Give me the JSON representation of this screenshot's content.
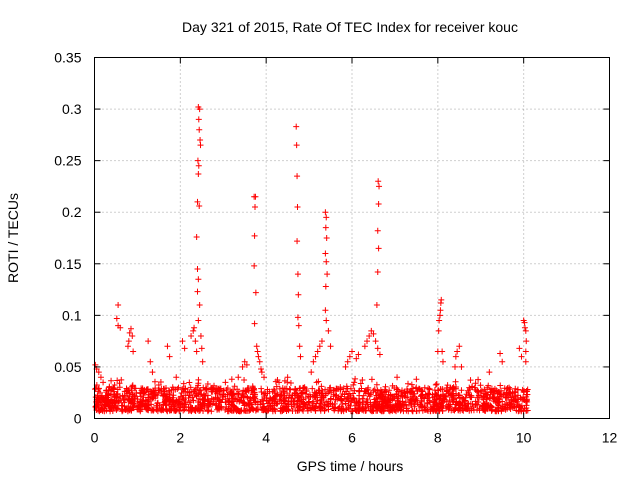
{
  "chart_data": {
    "type": "scatter",
    "title": "Day 321 of 2015, Rate Of TEC Index for receiver kouc",
    "xlabel": "GPS time / hours",
    "ylabel": "ROTI / TECUs",
    "xlim": [
      0,
      12
    ],
    "ylim": [
      0,
      0.35
    ],
    "x_ticks": [
      0,
      2,
      4,
      6,
      8,
      10,
      12
    ],
    "y_ticks": [
      0,
      0.05,
      0.1,
      0.15,
      0.2,
      0.25,
      0.3,
      0.35
    ],
    "x_tick_labels": [
      "0",
      "2",
      "4",
      "6",
      "8",
      "10",
      "12"
    ],
    "y_tick_labels": [
      "0",
      "0.05",
      "0.1",
      "0.15",
      "0.2",
      "0.25",
      "0.3",
      "0.35"
    ],
    "grid": true,
    "marker": "+",
    "color": "#ff0000",
    "background_band": {
      "x_range": [
        0.0,
        10.1
      ],
      "y_typical": [
        0.007,
        0.03
      ]
    },
    "series": [
      {
        "name": "ROTI",
        "points": [
          [
            0.02,
            0.052
          ],
          [
            0.05,
            0.048
          ],
          [
            0.1,
            0.045
          ],
          [
            0.15,
            0.04
          ],
          [
            0.2,
            0.035
          ],
          [
            0.55,
            0.11
          ],
          [
            0.52,
            0.097
          ],
          [
            0.55,
            0.09
          ],
          [
            0.6,
            0.088
          ],
          [
            0.78,
            0.07
          ],
          [
            0.8,
            0.075
          ],
          [
            0.82,
            0.083
          ],
          [
            0.85,
            0.087
          ],
          [
            0.88,
            0.08
          ],
          [
            0.9,
            0.065
          ],
          [
            1.25,
            0.075
          ],
          [
            1.3,
            0.055
          ],
          [
            1.35,
            0.045
          ],
          [
            1.7,
            0.07
          ],
          [
            1.75,
            0.06
          ],
          [
            2.05,
            0.075
          ],
          [
            2.1,
            0.068
          ],
          [
            2.25,
            0.08
          ],
          [
            2.3,
            0.085
          ],
          [
            2.32,
            0.088
          ],
          [
            2.35,
            0.075
          ],
          [
            2.38,
            0.065
          ],
          [
            2.42,
            0.302
          ],
          [
            2.45,
            0.3
          ],
          [
            2.43,
            0.29
          ],
          [
            2.44,
            0.28
          ],
          [
            2.46,
            0.27
          ],
          [
            2.47,
            0.265
          ],
          [
            2.41,
            0.25
          ],
          [
            2.43,
            0.245
          ],
          [
            2.42,
            0.237
          ],
          [
            2.4,
            0.21
          ],
          [
            2.44,
            0.206
          ],
          [
            2.38,
            0.176
          ],
          [
            2.4,
            0.145
          ],
          [
            2.42,
            0.135
          ],
          [
            2.4,
            0.123
          ],
          [
            2.45,
            0.11
          ],
          [
            2.42,
            0.095
          ],
          [
            2.48,
            0.08
          ],
          [
            2.5,
            0.068
          ],
          [
            2.52,
            0.055
          ],
          [
            3.05,
            0.035
          ],
          [
            3.2,
            0.038
          ],
          [
            3.35,
            0.04
          ],
          [
            3.45,
            0.05
          ],
          [
            3.5,
            0.055
          ],
          [
            3.55,
            0.052
          ],
          [
            3.72,
            0.215
          ],
          [
            3.75,
            0.215
          ],
          [
            3.74,
            0.205
          ],
          [
            3.73,
            0.177
          ],
          [
            3.72,
            0.148
          ],
          [
            3.76,
            0.122
          ],
          [
            3.73,
            0.092
          ],
          [
            3.78,
            0.07
          ],
          [
            3.8,
            0.065
          ],
          [
            3.82,
            0.06
          ],
          [
            3.85,
            0.055
          ],
          [
            3.88,
            0.048
          ],
          [
            3.9,
            0.045
          ],
          [
            3.95,
            0.04
          ],
          [
            4.3,
            0.035
          ],
          [
            4.5,
            0.04
          ],
          [
            4.7,
            0.283
          ],
          [
            4.71,
            0.265
          ],
          [
            4.72,
            0.235
          ],
          [
            4.73,
            0.205
          ],
          [
            4.72,
            0.172
          ],
          [
            4.74,
            0.14
          ],
          [
            4.75,
            0.12
          ],
          [
            4.74,
            0.098
          ],
          [
            4.76,
            0.09
          ],
          [
            4.78,
            0.07
          ],
          [
            4.8,
            0.06
          ],
          [
            5.05,
            0.045
          ],
          [
            5.1,
            0.055
          ],
          [
            5.15,
            0.06
          ],
          [
            5.2,
            0.065
          ],
          [
            5.25,
            0.07
          ],
          [
            5.3,
            0.075
          ],
          [
            5.38,
            0.2
          ],
          [
            5.4,
            0.195
          ],
          [
            5.39,
            0.185
          ],
          [
            5.41,
            0.175
          ],
          [
            5.38,
            0.16
          ],
          [
            5.4,
            0.152
          ],
          [
            5.42,
            0.14
          ],
          [
            5.39,
            0.128
          ],
          [
            5.38,
            0.105
          ],
          [
            5.4,
            0.095
          ],
          [
            5.45,
            0.085
          ],
          [
            5.5,
            0.07
          ],
          [
            5.85,
            0.05
          ],
          [
            5.9,
            0.055
          ],
          [
            5.95,
            0.06
          ],
          [
            6.0,
            0.065
          ],
          [
            6.1,
            0.058
          ],
          [
            6.15,
            0.062
          ],
          [
            6.3,
            0.07
          ],
          [
            6.35,
            0.075
          ],
          [
            6.4,
            0.08
          ],
          [
            6.45,
            0.085
          ],
          [
            6.5,
            0.082
          ],
          [
            6.55,
            0.075
          ],
          [
            6.6,
            0.068
          ],
          [
            6.65,
            0.062
          ],
          [
            6.58,
            0.11
          ],
          [
            6.6,
            0.142
          ],
          [
            6.62,
            0.165
          ],
          [
            6.6,
            0.182
          ],
          [
            6.62,
            0.208
          ],
          [
            6.63,
            0.225
          ],
          [
            6.61,
            0.23
          ],
          [
            7.05,
            0.04
          ],
          [
            7.5,
            0.038
          ],
          [
            8.0,
            0.065
          ],
          [
            8.02,
            0.085
          ],
          [
            8.05,
            0.1
          ],
          [
            8.07,
            0.112
          ],
          [
            8.08,
            0.115
          ],
          [
            8.06,
            0.105
          ],
          [
            8.03,
            0.095
          ],
          [
            8.1,
            0.065
          ],
          [
            8.12,
            0.055
          ],
          [
            8.4,
            0.05
          ],
          [
            8.42,
            0.06
          ],
          [
            8.45,
            0.065
          ],
          [
            8.5,
            0.07
          ],
          [
            8.55,
            0.05
          ],
          [
            9.2,
            0.045
          ],
          [
            9.45,
            0.063
          ],
          [
            9.5,
            0.055
          ],
          [
            9.9,
            0.068
          ],
          [
            9.95,
            0.06
          ],
          [
            10.0,
            0.095
          ],
          [
            10.02,
            0.093
          ],
          [
            10.03,
            0.088
          ],
          [
            10.05,
            0.085
          ],
          [
            10.06,
            0.075
          ],
          [
            10.05,
            0.065
          ],
          [
            10.05,
            0.055
          ]
        ]
      }
    ]
  }
}
